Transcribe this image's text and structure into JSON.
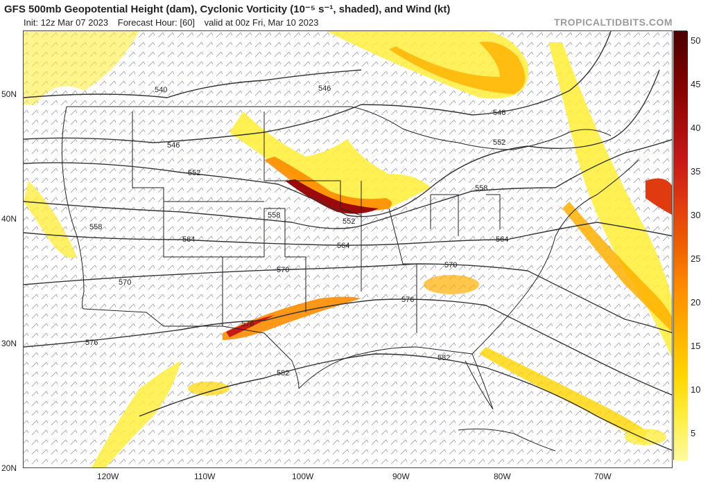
{
  "header": {
    "title": "GFS 500mb Geopotential Height (dam), Cyclonic Vorticity (10⁻⁵ s⁻¹, shaded), and Wind (kt)",
    "init": "Init: 12z Mar 07 2023",
    "forecast_hour": "Forecast Hour: [60]",
    "valid": "valid at 00z Fri, Mar 10 2023",
    "brand": "TROPICALTIDBITS.COM"
  },
  "axes": {
    "lat_labels": [
      "50N",
      "40N",
      "30N",
      "20N"
    ],
    "lon_labels": [
      "120W",
      "110W",
      "100W",
      "90W",
      "80W",
      "70W"
    ]
  },
  "contours": {
    "labels": [
      "540",
      "546",
      "546",
      "546",
      "552",
      "552",
      "552",
      "552",
      "558",
      "558",
      "558",
      "558",
      "564",
      "564",
      "564",
      "570",
      "570",
      "570",
      "576",
      "576",
      "576",
      "582",
      "582"
    ]
  },
  "colorbar": {
    "labels": [
      "50",
      "45",
      "40",
      "35",
      "30",
      "25",
      "20",
      "15",
      "10",
      "5"
    ],
    "colors": [
      "#fffaa0",
      "#ffee40",
      "#ffd500",
      "#ffb000",
      "#ff8c00",
      "#f06000",
      "#e03a10",
      "#c81818",
      "#a00a0a",
      "#780000",
      "#4a0000"
    ]
  },
  "map_colors": {
    "vort_light": "#ffee40",
    "vort_mid": "#ffb000",
    "vort_strong": "#e03a10",
    "vort_max": "#9a0a0a",
    "contour": "#333333",
    "border": "#222222",
    "barb": "#3c3c66"
  }
}
